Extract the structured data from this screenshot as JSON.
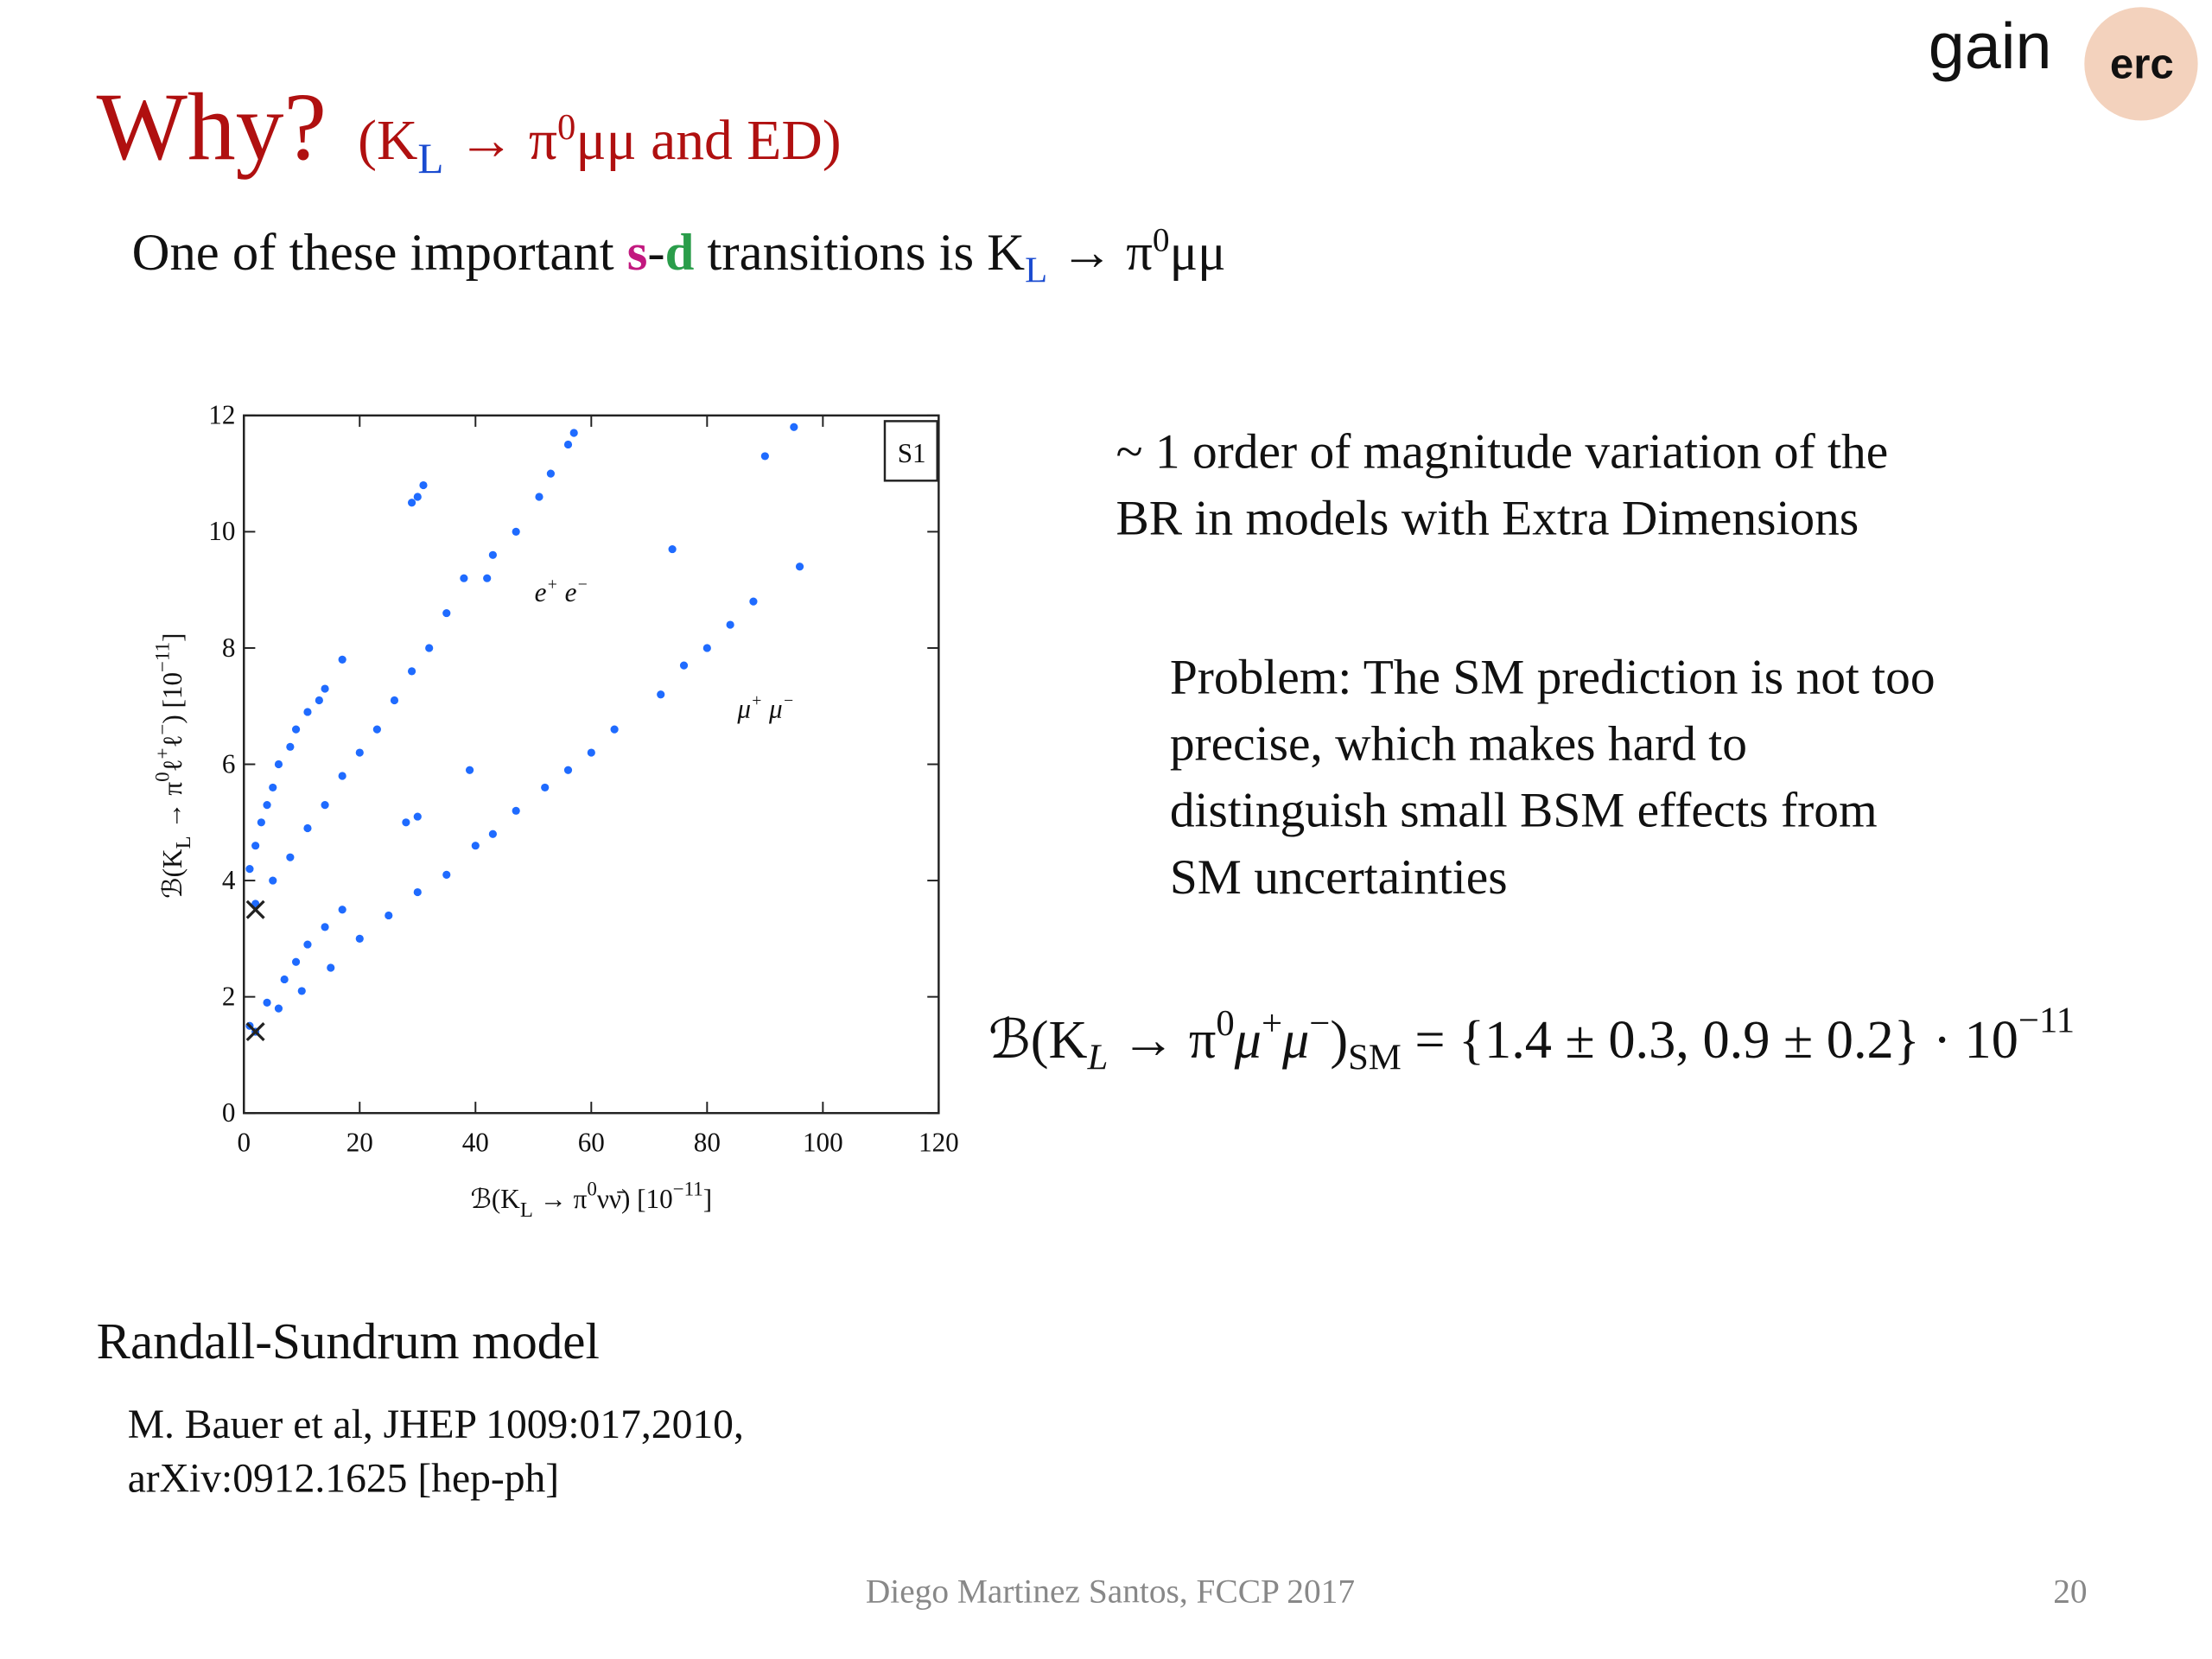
{
  "logo": {
    "name": "gain",
    "partner": "erc"
  },
  "title": {
    "main": "Why?",
    "sub": [
      "(K",
      "L",
      " → π",
      "0",
      "μμ and ED)"
    ]
  },
  "intro": [
    "One of these important ",
    "s",
    "-",
    "d",
    " transitions is K",
    "L",
    " → π",
    "0",
    "μμ"
  ],
  "chart_data": {
    "type": "scatter",
    "xlim": [
      0,
      120
    ],
    "ylim": [
      0,
      12
    ],
    "xticks": [
      0,
      20,
      40,
      60,
      80,
      100,
      120
    ],
    "yticks": [
      0,
      2,
      4,
      6,
      8,
      10,
      12
    ],
    "xlabel": [
      "ℬ(K",
      "L",
      " → π",
      "0",
      "νν̄)  [10",
      "−11",
      "]"
    ],
    "ylabel": [
      "ℬ(K",
      "L",
      " → π",
      "0",
      "ℓ",
      "+",
      "ℓ",
      "−",
      ")  [10",
      "−11",
      "]"
    ],
    "annotations": {
      "panel": "S1",
      "ee": [
        "e",
        "+",
        " e",
        "−"
      ],
      "mumu": [
        "μ",
        "+",
        " μ",
        "−"
      ]
    },
    "series": [
      {
        "color": "#1f6bff",
        "marker": "dot",
        "x": [
          1,
          2,
          3,
          4,
          5,
          6,
          8,
          9,
          11,
          13,
          14,
          17,
          2,
          5,
          8,
          11,
          14,
          17,
          20,
          23,
          26,
          29,
          32,
          35,
          38,
          42,
          43,
          47,
          51,
          53,
          56,
          57,
          29,
          30,
          31,
          28,
          30,
          39
        ],
        "values": [
          4.2,
          4.6,
          5.0,
          5.3,
          5.6,
          6.0,
          6.3,
          6.6,
          6.9,
          7.1,
          7.3,
          7.8,
          3.6,
          4.0,
          4.4,
          4.9,
          5.3,
          5.8,
          6.2,
          6.6,
          7.1,
          7.6,
          8.0,
          8.6,
          9.2,
          9.2,
          9.6,
          10.0,
          10.6,
          11.0,
          11.5,
          11.7,
          10.5,
          10.6,
          10.8,
          5.0,
          5.1,
          5.9
        ]
      },
      {
        "color": "#1f6bff",
        "marker": "dot",
        "x": [
          1,
          4,
          7,
          9,
          11,
          14,
          17,
          2,
          6,
          10,
          15,
          20,
          25,
          30,
          35,
          40,
          43,
          47,
          52,
          56,
          60,
          64,
          72,
          76,
          80,
          84,
          88,
          96,
          74,
          90,
          95
        ],
        "values": [
          1.5,
          1.9,
          2.3,
          2.6,
          2.9,
          3.2,
          3.5,
          1.4,
          1.8,
          2.1,
          2.5,
          3.0,
          3.4,
          3.8,
          4.1,
          4.6,
          4.8,
          5.2,
          5.6,
          5.9,
          6.2,
          6.6,
          7.2,
          7.7,
          8.0,
          8.4,
          8.8,
          9.4,
          9.7,
          11.3,
          11.8
        ]
      },
      {
        "color": "#222222",
        "marker": "x",
        "x": [
          2,
          2
        ],
        "values": [
          3.5,
          1.4
        ]
      }
    ]
  },
  "note": [
    "~ 1 order of magnitude variation of the",
    "BR in models with Extra Dimensions"
  ],
  "problem": [
    "Problem: The SM prediction is not too",
    "precise, which makes hard to",
    "distinguish small BSM effects from",
    "SM uncertainties"
  ],
  "formula": [
    "ℬ(K",
    "L",
    " → π",
    "0",
    "μ",
    "+",
    "μ",
    "−",
    ")",
    "SM",
    " = {1.4 ± 0.3, 0.9 ± 0.2} · 10",
    "−11"
  ],
  "model": "Randall-Sundrum model",
  "reference": [
    "M. Bauer et al, JHEP 1009:017,2010,",
    "arXiv:0912.1625 [hep-ph]"
  ],
  "footer": "Diego Martinez Santos, FCCP 2017",
  "page": "20"
}
